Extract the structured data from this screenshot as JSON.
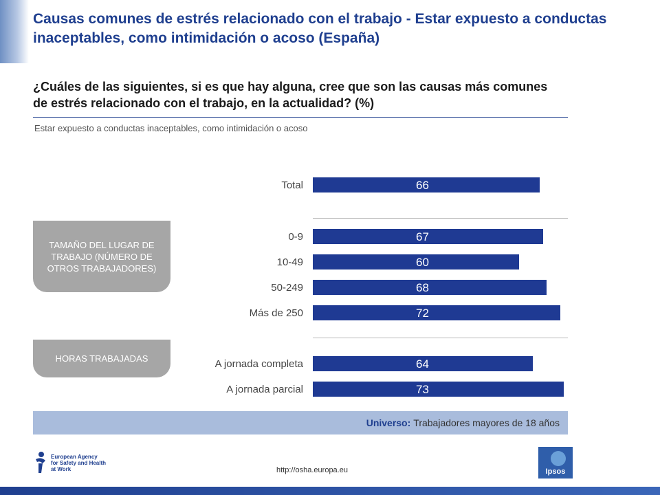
{
  "header": {
    "title": "Causas comunes de estrés relacionado con el trabajo - Estar expuesto a conductas inaceptables, como intimidación o acoso (España)",
    "question": "¿Cuáles de las siguientes, si es que hay alguna, cree que son las causas más comunes de estrés relacionado con el trabajo, en la actualidad? (%)",
    "item": "Estar expuesto a conductas inaceptables, como intimidación o acoso"
  },
  "groups": {
    "size": "TAMAÑO DEL LUGAR DE TRABAJO (NÚMERO DE OTROS TRABAJADORES)",
    "hours": "HORAS TRABAJADAS"
  },
  "chart_data": {
    "type": "bar",
    "orientation": "horizontal",
    "categories": [
      "Total",
      "0-9",
      "10-49",
      "50-249",
      "Más de 250",
      "A jornada completa",
      "A jornada parcial"
    ],
    "values": [
      66,
      67,
      60,
      68,
      72,
      64,
      73
    ],
    "xlim": [
      0,
      100
    ],
    "data_labels": true,
    "grid": false,
    "bar_color": "#1f3a93"
  },
  "footer": {
    "universe_label": "Universo:",
    "universe_text": "Trabajadores mayores de 18 años",
    "url": "http://osha.europa.eu",
    "agency_lines": [
      "European Agency",
      "for Safety and Health",
      "at Work"
    ],
    "ipsos": "Ipsos"
  }
}
